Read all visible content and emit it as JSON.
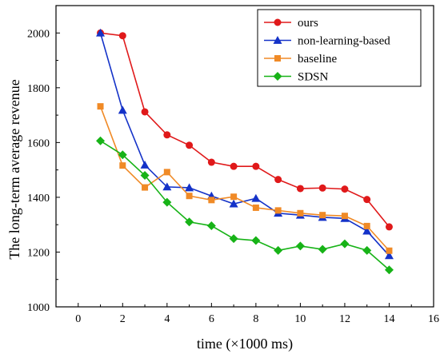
{
  "chart_data": {
    "type": "line",
    "xlabel": "time (×1000 ms)",
    "ylabel": "The long-term average revenue",
    "xlim": [
      -1,
      16
    ],
    "ylim": [
      1000,
      2100
    ],
    "xticks": [
      0,
      2,
      4,
      6,
      8,
      10,
      12,
      14,
      16
    ],
    "yticks": [
      1000,
      1200,
      1400,
      1600,
      1800,
      2000
    ],
    "grid": false,
    "legend_position": "top-right",
    "x": [
      1,
      2,
      3,
      4,
      5,
      6,
      7,
      8,
      9,
      10,
      11,
      12,
      13,
      14
    ],
    "series": [
      {
        "name": "ours",
        "color": "#e0191a",
        "marker": "circle",
        "values": [
          2000,
          1990,
          1712,
          1628,
          1590,
          1528,
          1513,
          1513,
          1465,
          1432,
          1434,
          1430,
          1392,
          1292
        ]
      },
      {
        "name": "non-learning-based",
        "color": "#1432c8",
        "marker": "triangle",
        "values": [
          2000,
          1718,
          1518,
          1438,
          1435,
          1405,
          1376,
          1396,
          1342,
          1335,
          1327,
          1323,
          1277,
          1187
        ]
      },
      {
        "name": "baseline",
        "color": "#f08a26",
        "marker": "square",
        "values": [
          1732,
          1516,
          1436,
          1492,
          1405,
          1390,
          1402,
          1362,
          1352,
          1342,
          1335,
          1332,
          1295,
          1205
        ]
      },
      {
        "name": "SDSN",
        "color": "#17b317",
        "marker": "diamond",
        "values": [
          1606,
          1555,
          1480,
          1382,
          1310,
          1296,
          1249,
          1242,
          1206,
          1222,
          1210,
          1230,
          1206,
          1135
        ]
      }
    ]
  }
}
